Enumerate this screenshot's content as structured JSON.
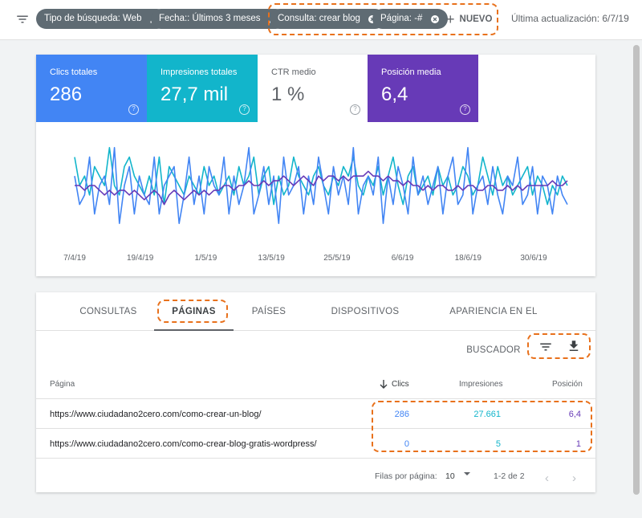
{
  "filters": [
    {
      "label": "Tipo de búsqueda: Web",
      "icon": "pencil-icon"
    },
    {
      "label": "Fecha:: Últimos 3 meses",
      "icon": "pencil-icon"
    },
    {
      "label": "Consulta: crear blog",
      "icon": "close-circle-icon"
    },
    {
      "label": "Página: -#",
      "icon": "close-circle-icon"
    }
  ],
  "new_button": "NUEVO",
  "last_update": "Última actualización: 6/7/19",
  "metrics": [
    {
      "label": "Clics totales",
      "value": "286",
      "color": "#4285f4"
    },
    {
      "label": "Impresiones totales",
      "value": "27,7 mil",
      "color": "#12b5cb"
    },
    {
      "label": "CTR medio",
      "value": "1 %",
      "color": "#ffffff"
    },
    {
      "label": "Posición media",
      "value": "6,4",
      "color": "#673ab7"
    }
  ],
  "help_glyph": "?",
  "chart_data": {
    "type": "line",
    "x_tick_labels": [
      "7/4/19",
      "19/4/19",
      "1/5/19",
      "13/5/19",
      "25/5/19",
      "6/6/19",
      "18/6/19",
      "30/6/19"
    ],
    "series": [
      {
        "color": "#12b5cb",
        "values": [
          8,
          5,
          6,
          4,
          7,
          6,
          5,
          9,
          5,
          4,
          7,
          8,
          6,
          5,
          4,
          6,
          4,
          8,
          3,
          7,
          6,
          5,
          4,
          6,
          5,
          4,
          7,
          5,
          6,
          4,
          5,
          6,
          4,
          7,
          5,
          6,
          8,
          4,
          6,
          7,
          3,
          6,
          4,
          5,
          8,
          6,
          5,
          4,
          6,
          7,
          5,
          4,
          6,
          5,
          7,
          6,
          8,
          5,
          4,
          6,
          5,
          7,
          4,
          6,
          8,
          5,
          3,
          6,
          7,
          4,
          5,
          6,
          4,
          7,
          5,
          6,
          4,
          5,
          7,
          6,
          4,
          5,
          8,
          6,
          4,
          7,
          5,
          6,
          4,
          5,
          6,
          7,
          4,
          6,
          5,
          3,
          5,
          4,
          6,
          5
        ]
      },
      {
        "color": "#4285f4",
        "values": [
          6,
          3,
          4,
          8,
          2,
          5,
          6,
          3,
          9,
          1,
          5,
          7,
          2,
          6,
          4,
          3,
          8,
          2,
          5,
          6,
          7,
          1,
          4,
          8,
          3,
          6,
          2,
          7,
          5,
          4,
          8,
          2,
          6,
          3,
          5,
          9,
          2,
          4,
          7,
          3,
          6,
          1,
          8,
          4,
          5,
          7,
          2,
          6,
          3,
          8,
          5,
          2,
          7,
          4,
          6,
          3,
          9,
          2,
          5,
          6,
          4,
          8,
          1,
          6,
          3,
          7,
          5,
          2,
          8,
          4,
          6,
          3,
          5,
          7,
          2,
          6,
          8,
          3,
          4,
          9,
          2,
          5,
          6,
          3,
          7,
          4,
          2,
          6,
          5,
          8,
          3,
          4,
          7,
          2,
          6,
          5,
          2,
          6,
          4,
          3
        ]
      },
      {
        "color": "#673ab7",
        "values": [
          5,
          5,
          4.5,
          5,
          5,
          4.5,
          4,
          4.5,
          4,
          4.5,
          4.5,
          4,
          4.5,
          4,
          3.5,
          4,
          4.5,
          4,
          3,
          4,
          4.5,
          4,
          3.5,
          4,
          4.5,
          4,
          4.5,
          4,
          4.5,
          4.5,
          5,
          5,
          4.5,
          5,
          5,
          5.5,
          5,
          5,
          5.5,
          5,
          5.5,
          5.5,
          6,
          5.5,
          5,
          5.5,
          6,
          5.5,
          5,
          6,
          5.5,
          6,
          6,
          5.5,
          6,
          5.5,
          6,
          6,
          6,
          6.5,
          6,
          6,
          5.5,
          6,
          5.5,
          5.5,
          5,
          5.5,
          5,
          5,
          4.5,
          5,
          4.5,
          5,
          5,
          4.5,
          4.5,
          5,
          4.5,
          5,
          5,
          4.5,
          4.5,
          5,
          5,
          4.5,
          4.5,
          5,
          4.5,
          5,
          4.5,
          5,
          5,
          5,
          5,
          5,
          5.5,
          5,
          5,
          5.5
        ]
      }
    ]
  },
  "tabs": [
    "CONSULTAS",
    "PÁGINAS",
    "PAÍSES",
    "DISPOSITIVOS",
    "APARIENCIA EN EL BUSCADOR"
  ],
  "table": {
    "headers": {
      "page": "Página",
      "clicks": "Clics",
      "impressions": "Impresiones",
      "position": "Posición"
    },
    "rows": [
      {
        "url": "https://www.ciudadano2cero.com/como-crear-un-blog/",
        "clicks": "286",
        "impressions": "27.661",
        "position": "6,4"
      },
      {
        "url": "https://www.ciudadano2cero.com/como-crear-blog-gratis-wordpress/",
        "clicks": "0",
        "impressions": "5",
        "position": "1"
      }
    ]
  },
  "pagination": {
    "rows_per_page_label": "Filas por página:",
    "rows_per_page": "10",
    "range": "1-2 de 2"
  },
  "accent_color": "#e8711c"
}
